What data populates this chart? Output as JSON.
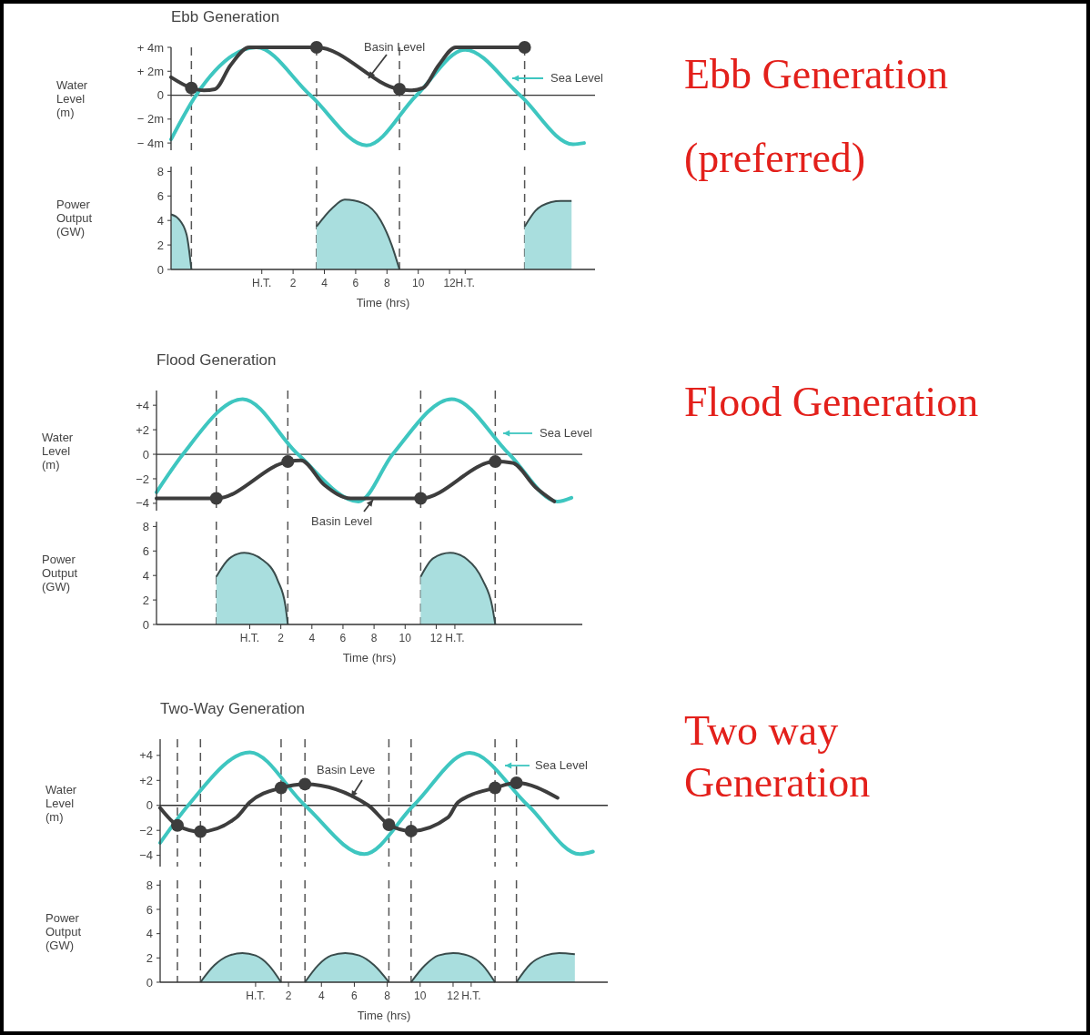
{
  "chart_data": [
    {
      "type": "line",
      "title": "Ebb Generation",
      "ylabel": "Water Level (m)",
      "tick_labels": "y",
      "xlim": [
        -5.8,
        21.3
      ],
      "ylim": [
        -4.6,
        4
      ],
      "yticks": [
        {
          "value": 4,
          "label": "+ 4m"
        },
        {
          "value": 2,
          "label": "+ 2m"
        },
        0,
        {
          "value": -2,
          "label": "− 2m"
        },
        {
          "value": -4,
          "label": "− 4m"
        }
      ],
      "annotations": [
        "Ebb Generation (preferred)"
      ],
      "ref_lines": [
        {
          "axis": "y",
          "value": 0,
          "line_style": "solid"
        },
        {
          "axis": "x",
          "value": -4.5,
          "line_style": "dashed"
        },
        {
          "axis": "x",
          "value": 3.5,
          "line_style": "dashed"
        },
        {
          "axis": "x",
          "value": 8.8,
          "line_style": "dashed"
        },
        {
          "axis": "x",
          "value": 16.8,
          "line_style": "dashed"
        }
      ],
      "series": [
        {
          "name": "Sea Level",
          "color": "#3ec6c0",
          "x": [
            -5.8,
            -4.2,
            -0.35,
            3.1,
            6.7,
            9.9,
            13.0,
            16.5,
            19.9,
            20.6
          ],
          "values": [
            -3.7,
            0,
            4,
            0,
            -4.2,
            0,
            3.8,
            0,
            -4.1,
            -4.0
          ]
        },
        {
          "name": "Basin Level",
          "color": "#3d3d3d",
          "x": [
            -5.8,
            -4.5,
            -3.7,
            -3.0,
            -2.0,
            -0.8,
            3.5,
            8.8,
            9.6,
            10.3,
            11.3,
            12.4,
            16.8
          ],
          "values": [
            1.5,
            0.6,
            0.4,
            0.5,
            2.5,
            4,
            4,
            0.5,
            0.4,
            0.6,
            2.5,
            4,
            4
          ]
        },
        {
          "type": "scatter",
          "marker": "circle",
          "color": "#3d3d3d",
          "x": [
            -4.5,
            3.5,
            8.8,
            16.8
          ],
          "values": [
            0.6,
            4,
            0.5,
            4
          ]
        }
      ]
    },
    {
      "type": "area",
      "ylabel": "Power Output (GW)",
      "xlabel": "Time (hrs)",
      "xlim": [
        -5.8,
        21.3
      ],
      "ylim": [
        0,
        8.4
      ],
      "yticks": [
        0,
        2,
        4,
        6,
        8
      ],
      "xticks": [
        {
          "value": 0,
          "label": "H.T."
        },
        2,
        4,
        6,
        8,
        10,
        12,
        {
          "value": 13,
          "label": "H.T."
        }
      ],
      "ref_lines": [
        {
          "axis": "x",
          "value": -4.5,
          "line_style": "dashed"
        },
        {
          "axis": "x",
          "value": 3.5,
          "line_style": "dashed"
        },
        {
          "axis": "x",
          "value": 8.8,
          "line_style": "dashed"
        },
        {
          "axis": "x",
          "value": 16.8,
          "line_style": "dashed"
        }
      ],
      "series": [
        {
          "color": "#a9dede",
          "x": [
            -5.8,
            -5.3,
            -4.8,
            -4.5,
            0,
            3.5,
            4.5,
            5.3,
            6.5,
            7.6,
            8.3,
            8.8,
            12,
            16.8,
            17.5,
            18.5,
            19.1,
            19.8
          ],
          "values": [
            4.5,
            4.1,
            2.8,
            0,
            null,
            3.5,
            5.0,
            5.7,
            5.4,
            4.0,
            2.0,
            0,
            null,
            3.5,
            4.8,
            5.5,
            5.6,
            5.6
          ]
        }
      ]
    },
    {
      "type": "line",
      "title": "Flood Generation",
      "ylabel": "Water Level (m)",
      "tick_labels": "y",
      "xlim": [
        -6,
        21.4
      ],
      "ylim": [
        -4.6,
        5.2
      ],
      "yticks": [
        {
          "value": 4,
          "label": "+4"
        },
        {
          "value": 2,
          "label": "+2"
        },
        0,
        {
          "value": -2,
          "label": "−2"
        },
        {
          "value": -4,
          "label": "−4"
        }
      ],
      "annotations": [
        "Flood Generation"
      ],
      "ref_lines": [
        {
          "axis": "y",
          "value": 0,
          "line_style": "solid"
        },
        {
          "axis": "x",
          "value": -2.15,
          "line_style": "dashed"
        },
        {
          "axis": "x",
          "value": 2.45,
          "line_style": "dashed"
        },
        {
          "axis": "x",
          "value": 11.0,
          "line_style": "dashed"
        },
        {
          "axis": "x",
          "value": 15.8,
          "line_style": "dashed"
        }
      ],
      "series": [
        {
          "name": "Sea Level",
          "color": "#3ec6c0",
          "x": [
            -6,
            -4.3,
            -0.45,
            3.1,
            7.0,
            9.2,
            13.0,
            16.7,
            19.8,
            20.7
          ],
          "values": [
            -3.1,
            0,
            4.5,
            0,
            -3.85,
            0,
            4.5,
            0,
            -3.85,
            -3.55
          ]
        },
        {
          "name": "Basin Level",
          "color": "#3d3d3d",
          "x": [
            -6,
            -2.15,
            2.45,
            3.3,
            4.8,
            6.5,
            11.0,
            15.8,
            16.9,
            18.4,
            19.6
          ],
          "values": [
            -3.6,
            -3.6,
            -0.6,
            -0.5,
            -2.5,
            -3.6,
            -3.6,
            -0.6,
            -0.7,
            -2.7,
            -3.85
          ]
        },
        {
          "type": "scatter",
          "marker": "circle",
          "color": "#3d3d3d",
          "x": [
            -2.15,
            2.45,
            11.0,
            15.8
          ],
          "values": [
            -3.6,
            -0.6,
            -3.6,
            -0.6
          ]
        }
      ]
    },
    {
      "type": "area",
      "ylabel": "Power Output (GW)",
      "xlabel": "Time (hrs)",
      "xlim": [
        -6,
        21.4
      ],
      "ylim": [
        0,
        8.4
      ],
      "yticks": [
        0,
        2,
        4,
        6,
        8
      ],
      "xticks": [
        {
          "value": 0,
          "label": "H.T."
        },
        2,
        4,
        6,
        8,
        10,
        12,
        {
          "value": 13.2,
          "label": "H.T."
        }
      ],
      "ref_lines": [
        {
          "axis": "x",
          "value": -2.15,
          "line_style": "dashed"
        },
        {
          "axis": "x",
          "value": 2.45,
          "line_style": "dashed"
        },
        {
          "axis": "x",
          "value": 11.0,
          "line_style": "dashed"
        },
        {
          "axis": "x",
          "value": 15.8,
          "line_style": "dashed"
        }
      ],
      "series": [
        {
          "color": "#a9dede",
          "x": [
            -2.15,
            -1.3,
            -0.35,
            0.8,
            1.8,
            2.3,
            2.45,
            6,
            11.0,
            11.8,
            12.9,
            14,
            15,
            15.6,
            15.8
          ],
          "values": [
            3.9,
            5.4,
            5.85,
            5.3,
            3.6,
            1.5,
            0,
            null,
            3.9,
            5.4,
            5.85,
            5.3,
            3.6,
            1.5,
            0
          ]
        }
      ]
    },
    {
      "type": "line",
      "title": "Two-Way Generation",
      "ylabel": "Water Level (m)",
      "tick_labels": "y",
      "xlim": [
        -5.8,
        21.4
      ],
      "ylim": [
        -4.9,
        5.3
      ],
      "yticks": [
        {
          "value": 4,
          "label": "+4"
        },
        {
          "value": 2,
          "label": "+2"
        },
        0,
        {
          "value": -2,
          "label": "−2"
        },
        {
          "value": -4,
          "label": "−4"
        }
      ],
      "annotations": [
        "Two way Generation"
      ],
      "ref_lines": [
        {
          "axis": "y",
          "value": 0,
          "line_style": "solid"
        },
        {
          "axis": "x",
          "value": -4.75,
          "line_style": "dashed"
        },
        {
          "axis": "x",
          "value": -3.35,
          "line_style": "dashed"
        },
        {
          "axis": "x",
          "value": 1.55,
          "line_style": "dashed"
        },
        {
          "axis": "x",
          "value": 3.0,
          "line_style": "dashed"
        },
        {
          "axis": "x",
          "value": 8.1,
          "line_style": "dashed"
        },
        {
          "axis": "x",
          "value": 9.45,
          "line_style": "dashed"
        },
        {
          "axis": "x",
          "value": 14.55,
          "line_style": "dashed"
        },
        {
          "axis": "x",
          "value": 15.85,
          "line_style": "dashed"
        }
      ],
      "series": [
        {
          "name": "Sea Level",
          "color": "#3ec6c0",
          "x": [
            -5.8,
            -4.1,
            -0.35,
            3.0,
            6.6,
            9.6,
            13.0,
            16.55,
            19.7,
            20.5
          ],
          "values": [
            -3.0,
            0,
            4.25,
            0,
            -3.9,
            0,
            4.2,
            0,
            -3.9,
            -3.7
          ]
        },
        {
          "name": "Basin Leve",
          "color": "#3d3d3d",
          "x": [
            -5.8,
            -4.75,
            -3.35,
            -1.15,
            -0.35,
            1.55,
            3.0,
            6.85,
            8.1,
            9.45,
            11.7,
            12.3,
            14.55,
            15.85,
            18.35
          ],
          "values": [
            -0.2,
            -1.6,
            -2.1,
            -0.95,
            0.25,
            1.4,
            1.7,
            0,
            -1.55,
            -2.05,
            -0.95,
            0.25,
            1.4,
            1.8,
            0.6
          ]
        },
        {
          "type": "scatter",
          "marker": "circle",
          "color": "#3d3d3d",
          "x": [
            -4.75,
            -3.35,
            1.55,
            3.0,
            8.1,
            9.45,
            14.55,
            15.85
          ],
          "values": [
            -1.6,
            -2.1,
            1.4,
            1.7,
            -1.55,
            -2.05,
            1.4,
            1.8
          ]
        }
      ]
    },
    {
      "type": "area",
      "ylabel": "Power Output (GW)",
      "xlabel": "Time (hrs)",
      "xlim": [
        -5.8,
        21.4
      ],
      "ylim": [
        0,
        8.4
      ],
      "yticks": [
        0,
        2,
        4,
        6,
        8
      ],
      "xticks": [
        {
          "value": 0,
          "label": "H.T."
        },
        2,
        4,
        6,
        8,
        10,
        12,
        {
          "value": 13.1,
          "label": "H.T."
        }
      ],
      "ref_lines": [
        {
          "axis": "x",
          "value": -4.75,
          "line_style": "dashed"
        },
        {
          "axis": "x",
          "value": -3.35,
          "line_style": "dashed"
        },
        {
          "axis": "x",
          "value": 1.55,
          "line_style": "dashed"
        },
        {
          "axis": "x",
          "value": 3.0,
          "line_style": "dashed"
        },
        {
          "axis": "x",
          "value": 8.1,
          "line_style": "dashed"
        },
        {
          "axis": "x",
          "value": 9.45,
          "line_style": "dashed"
        },
        {
          "axis": "x",
          "value": 14.55,
          "line_style": "dashed"
        },
        {
          "axis": "x",
          "value": 15.85,
          "line_style": "dashed"
        }
      ],
      "series": [
        {
          "color": "#a9dede",
          "x": [
            -3.35,
            -2.5,
            -1.6,
            -0.8,
            0,
            0.8,
            1.55,
            2.3,
            3.0,
            3.8,
            4.6,
            5.45,
            6.3,
            7.2,
            8.1,
            8.8,
            9.45,
            10.3,
            11.1,
            12.0,
            12.9,
            13.8,
            14.55,
            15.2,
            15.85,
            16.7,
            17.6,
            18.45,
            19.4
          ],
          "values": [
            0,
            1.4,
            2.2,
            2.4,
            2.2,
            1.4,
            0,
            null,
            0,
            1.4,
            2.2,
            2.4,
            2.2,
            1.4,
            0,
            null,
            0,
            1.4,
            2.2,
            2.4,
            2.2,
            1.4,
            0,
            null,
            0,
            1.5,
            2.2,
            2.4,
            2.3
          ]
        }
      ]
    }
  ]
}
